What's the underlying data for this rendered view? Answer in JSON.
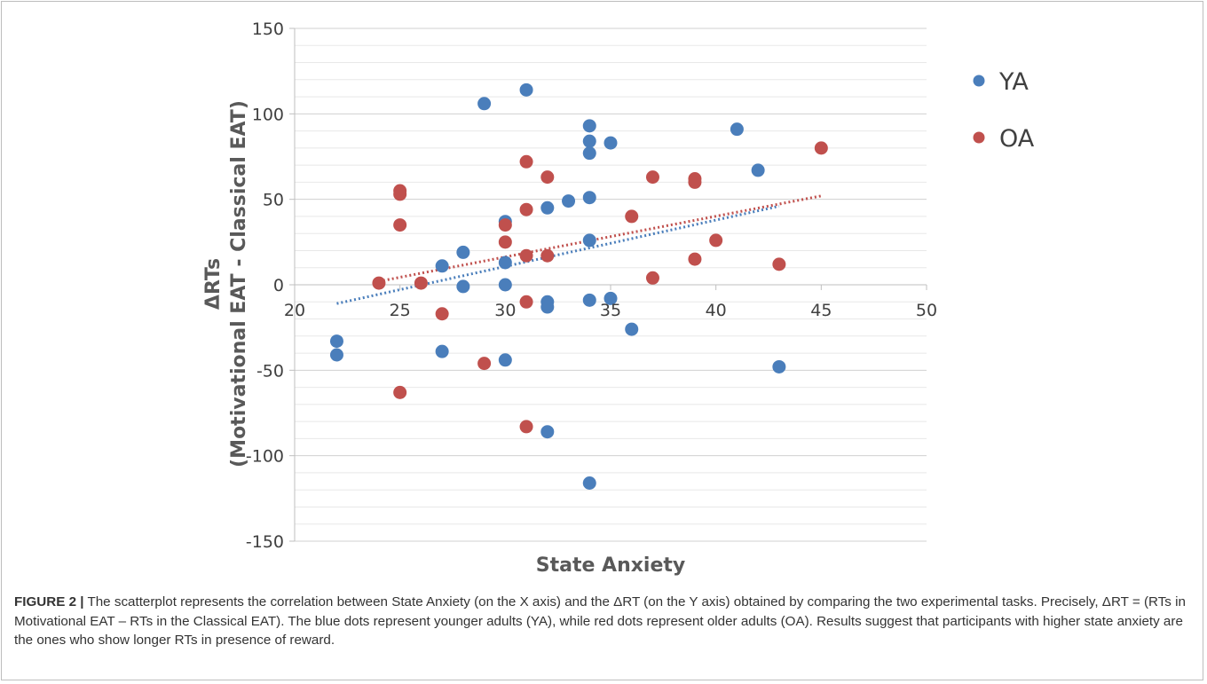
{
  "figure": {
    "label": "FIGURE 2 |",
    "caption": " The scatterplot represents the correlation between State Anxiety (on the X axis) and the ΔRT (on the Y axis) obtained by comparing the two experimental tasks. Precisely, ΔRT = (RTs in Motivational EAT – RTs in the Classical EAT). The blue dots represent younger adults (YA), while red dots represent older adults (OA). Results suggest that participants with higher state anxiety are the ones who show longer RTs in presence of reward."
  },
  "chart_data": {
    "type": "scatter",
    "title": "",
    "xlabel": "State Anxiety",
    "ylabel_line1": "ΔRTs",
    "ylabel_line2": "(Motivational EAT - Classical EAT)",
    "xlim": [
      20,
      50
    ],
    "ylim": [
      -150,
      150
    ],
    "xticks": [
      "20",
      "25",
      "30",
      "35",
      "40",
      "45",
      "50"
    ],
    "yticks": [
      "150",
      "100",
      "50",
      "0",
      "-50",
      "-100",
      "-150"
    ],
    "minor_gridline_step": 10,
    "legend_position": "top-right",
    "series": [
      {
        "name": "YA",
        "color": "#4a7ebb",
        "trendline": {
          "style": "dotted",
          "x": [
            22,
            43
          ],
          "y": [
            -11,
            46
          ]
        },
        "points": [
          [
            22,
            -33
          ],
          [
            22,
            -41
          ],
          [
            27,
            11
          ],
          [
            27,
            -39
          ],
          [
            28,
            19
          ],
          [
            28,
            -1
          ],
          [
            29,
            106
          ],
          [
            30,
            37
          ],
          [
            30,
            13
          ],
          [
            30,
            0
          ],
          [
            30,
            -44
          ],
          [
            31,
            114
          ],
          [
            32,
            45
          ],
          [
            32,
            -10
          ],
          [
            32,
            -13
          ],
          [
            32,
            -86
          ],
          [
            33,
            49
          ],
          [
            34,
            93
          ],
          [
            34,
            84
          ],
          [
            34,
            77
          ],
          [
            34,
            51
          ],
          [
            34,
            26
          ],
          [
            34,
            -9
          ],
          [
            34,
            -116
          ],
          [
            35,
            83
          ],
          [
            35,
            -8
          ],
          [
            36,
            -26
          ],
          [
            41,
            91
          ],
          [
            42,
            67
          ],
          [
            43,
            -48
          ]
        ]
      },
      {
        "name": "OA",
        "color": "#c0504d",
        "trendline": {
          "style": "dotted",
          "x": [
            24,
            45
          ],
          "y": [
            2,
            52
          ]
        },
        "points": [
          [
            24,
            1
          ],
          [
            25,
            55
          ],
          [
            25,
            53
          ],
          [
            25,
            35
          ],
          [
            25,
            -63
          ],
          [
            26,
            1
          ],
          [
            27,
            -17
          ],
          [
            29,
            -46
          ],
          [
            30,
            35
          ],
          [
            30,
            25
          ],
          [
            31,
            72
          ],
          [
            31,
            44
          ],
          [
            31,
            17
          ],
          [
            31,
            -10
          ],
          [
            31,
            -83
          ],
          [
            32,
            63
          ],
          [
            32,
            17
          ],
          [
            36,
            40
          ],
          [
            37,
            63
          ],
          [
            37,
            4
          ],
          [
            39,
            62
          ],
          [
            39,
            60
          ],
          [
            39,
            15
          ],
          [
            40,
            26
          ],
          [
            43,
            12
          ],
          [
            45,
            80
          ]
        ]
      }
    ]
  }
}
